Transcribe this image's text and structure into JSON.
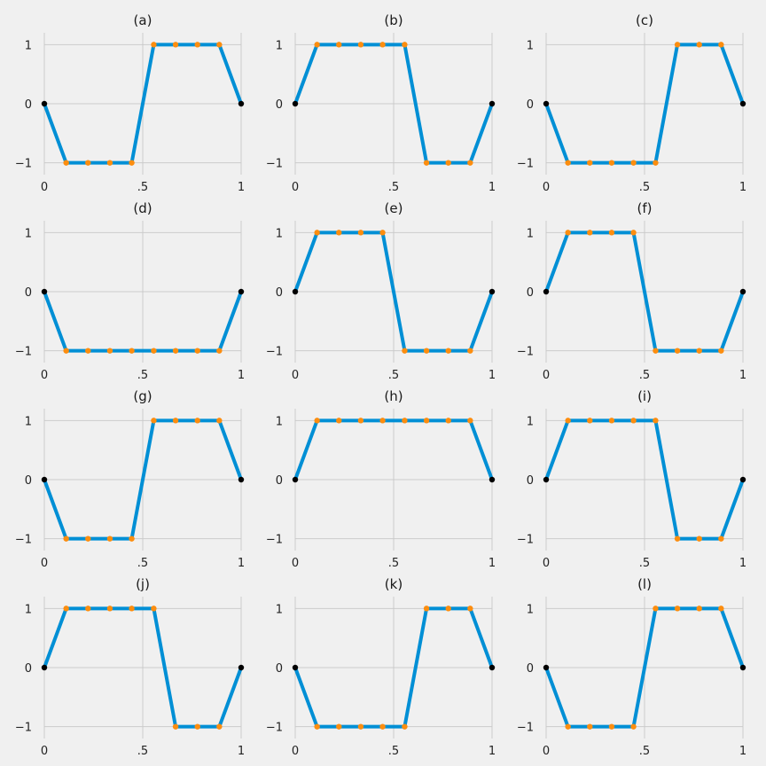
{
  "chart_data": [
    {
      "type": "line",
      "title": "(a)",
      "x": [
        0,
        0.111,
        0.222,
        0.333,
        0.444,
        0.556,
        0.667,
        0.778,
        0.889,
        1
      ],
      "y": [
        0,
        -1,
        -1,
        -1,
        -1,
        1,
        1,
        1,
        1,
        0
      ],
      "ylim": [
        -1.2,
        1.2
      ],
      "xlim": [
        0,
        1
      ],
      "xticks": [
        0,
        0.5,
        1
      ],
      "xtick_labels": [
        "0",
        ".5",
        "1"
      ],
      "yticks": [
        -1,
        0,
        1
      ],
      "ytick_labels": [
        "−1",
        "0",
        "1"
      ],
      "grid": true
    },
    {
      "type": "line",
      "title": "(b)",
      "x": [
        0,
        0.111,
        0.222,
        0.333,
        0.444,
        0.556,
        0.667,
        0.778,
        0.889,
        1
      ],
      "y": [
        0,
        1,
        1,
        1,
        1,
        1,
        -1,
        -1,
        -1,
        0
      ],
      "ylim": [
        -1.2,
        1.2
      ],
      "xlim": [
        0,
        1
      ],
      "xticks": [
        0,
        0.5,
        1
      ],
      "xtick_labels": [
        "0",
        ".5",
        "1"
      ],
      "yticks": [
        -1,
        0,
        1
      ],
      "ytick_labels": [
        "−1",
        "0",
        "1"
      ],
      "grid": true
    },
    {
      "type": "line",
      "title": "(c)",
      "x": [
        0,
        0.111,
        0.222,
        0.333,
        0.444,
        0.556,
        0.667,
        0.778,
        0.889,
        1
      ],
      "y": [
        0,
        -1,
        -1,
        -1,
        -1,
        -1,
        1,
        1,
        1,
        0
      ],
      "ylim": [
        -1.2,
        1.2
      ],
      "xlim": [
        0,
        1
      ],
      "xticks": [
        0,
        0.5,
        1
      ],
      "xtick_labels": [
        "0",
        ".5",
        "1"
      ],
      "yticks": [
        -1,
        0,
        1
      ],
      "ytick_labels": [
        "−1",
        "0",
        "1"
      ],
      "grid": true
    },
    {
      "type": "line",
      "title": "(d)",
      "x": [
        0,
        0.111,
        0.222,
        0.333,
        0.444,
        0.556,
        0.667,
        0.778,
        0.889,
        1
      ],
      "y": [
        0,
        -1,
        -1,
        -1,
        -1,
        -1,
        -1,
        -1,
        -1,
        0
      ],
      "ylim": [
        -1.2,
        1.2
      ],
      "xlim": [
        0,
        1
      ],
      "xticks": [
        0,
        0.5,
        1
      ],
      "xtick_labels": [
        "0",
        ".5",
        "1"
      ],
      "yticks": [
        -1,
        0,
        1
      ],
      "ytick_labels": [
        "−1",
        "0",
        "1"
      ],
      "grid": true
    },
    {
      "type": "line",
      "title": "(e)",
      "x": [
        0,
        0.111,
        0.222,
        0.333,
        0.444,
        0.556,
        0.667,
        0.778,
        0.889,
        1
      ],
      "y": [
        0,
        1,
        1,
        1,
        1,
        -1,
        -1,
        -1,
        -1,
        0
      ],
      "ylim": [
        -1.2,
        1.2
      ],
      "xlim": [
        0,
        1
      ],
      "xticks": [
        0,
        0.5,
        1
      ],
      "xtick_labels": [
        "0",
        ".5",
        "1"
      ],
      "yticks": [
        -1,
        0,
        1
      ],
      "ytick_labels": [
        "−1",
        "0",
        "1"
      ],
      "grid": true
    },
    {
      "type": "line",
      "title": "(f)",
      "x": [
        0,
        0.111,
        0.222,
        0.333,
        0.444,
        0.556,
        0.667,
        0.778,
        0.889,
        1
      ],
      "y": [
        0,
        1,
        1,
        1,
        1,
        -1,
        -1,
        -1,
        -1,
        0
      ],
      "ylim": [
        -1.2,
        1.2
      ],
      "xlim": [
        0,
        1
      ],
      "xticks": [
        0,
        0.5,
        1
      ],
      "xtick_labels": [
        "0",
        ".5",
        "1"
      ],
      "yticks": [
        -1,
        0,
        1
      ],
      "ytick_labels": [
        "−1",
        "0",
        "1"
      ],
      "grid": true
    },
    {
      "type": "line",
      "title": "(g)",
      "x": [
        0,
        0.111,
        0.222,
        0.333,
        0.444,
        0.556,
        0.667,
        0.778,
        0.889,
        1
      ],
      "y": [
        0,
        -1,
        -1,
        -1,
        -1,
        1,
        1,
        1,
        1,
        0
      ],
      "ylim": [
        -1.2,
        1.2
      ],
      "xlim": [
        0,
        1
      ],
      "xticks": [
        0,
        0.5,
        1
      ],
      "xtick_labels": [
        "0",
        ".5",
        "1"
      ],
      "yticks": [
        -1,
        0,
        1
      ],
      "ytick_labels": [
        "−1",
        "0",
        "1"
      ],
      "grid": true
    },
    {
      "type": "line",
      "title": "(h)",
      "x": [
        0,
        0.111,
        0.222,
        0.333,
        0.444,
        0.556,
        0.667,
        0.778,
        0.889,
        1
      ],
      "y": [
        0,
        1,
        1,
        1,
        1,
        1,
        1,
        1,
        1,
        0
      ],
      "ylim": [
        -1.2,
        1.2
      ],
      "xlim": [
        0,
        1
      ],
      "xticks": [
        0,
        0.5,
        1
      ],
      "xtick_labels": [
        "0",
        ".5",
        "1"
      ],
      "yticks": [
        -1,
        0,
        1
      ],
      "ytick_labels": [
        "−1",
        "0",
        "1"
      ],
      "grid": true
    },
    {
      "type": "line",
      "title": "(i)",
      "x": [
        0,
        0.111,
        0.222,
        0.333,
        0.444,
        0.556,
        0.667,
        0.778,
        0.889,
        1
      ],
      "y": [
        0,
        1,
        1,
        1,
        1,
        1,
        -1,
        -1,
        -1,
        0
      ],
      "ylim": [
        -1.2,
        1.2
      ],
      "xlim": [
        0,
        1
      ],
      "xticks": [
        0,
        0.5,
        1
      ],
      "xtick_labels": [
        "0",
        ".5",
        "1"
      ],
      "yticks": [
        -1,
        0,
        1
      ],
      "ytick_labels": [
        "−1",
        "0",
        "1"
      ],
      "grid": true
    },
    {
      "type": "line",
      "title": "(j)",
      "x": [
        0,
        0.111,
        0.222,
        0.333,
        0.444,
        0.556,
        0.667,
        0.778,
        0.889,
        1
      ],
      "y": [
        0,
        1,
        1,
        1,
        1,
        1,
        -1,
        -1,
        -1,
        0
      ],
      "ylim": [
        -1.2,
        1.2
      ],
      "xlim": [
        0,
        1
      ],
      "xticks": [
        0,
        0.5,
        1
      ],
      "xtick_labels": [
        "0",
        ".5",
        "1"
      ],
      "yticks": [
        -1,
        0,
        1
      ],
      "ytick_labels": [
        "−1",
        "0",
        "1"
      ],
      "grid": true
    },
    {
      "type": "line",
      "title": "(k)",
      "x": [
        0,
        0.111,
        0.222,
        0.333,
        0.444,
        0.556,
        0.667,
        0.778,
        0.889,
        1
      ],
      "y": [
        0,
        -1,
        -1,
        -1,
        -1,
        -1,
        1,
        1,
        1,
        0
      ],
      "ylim": [
        -1.2,
        1.2
      ],
      "xlim": [
        0,
        1
      ],
      "xticks": [
        0,
        0.5,
        1
      ],
      "xtick_labels": [
        "0",
        ".5",
        "1"
      ],
      "yticks": [
        -1,
        0,
        1
      ],
      "ytick_labels": [
        "−1",
        "0",
        "1"
      ],
      "grid": true
    },
    {
      "type": "line",
      "title": "(l)",
      "x": [
        0,
        0.111,
        0.222,
        0.333,
        0.444,
        0.556,
        0.667,
        0.778,
        0.889,
        1
      ],
      "y": [
        0,
        -1,
        -1,
        -1,
        -1,
        1,
        1,
        1,
        1,
        0
      ],
      "ylim": [
        -1.2,
        1.2
      ],
      "xlim": [
        0,
        1
      ],
      "xticks": [
        0,
        0.5,
        1
      ],
      "xtick_labels": [
        "0",
        ".5",
        "1"
      ],
      "yticks": [
        -1,
        0,
        1
      ],
      "ytick_labels": [
        "−1",
        "0",
        "1"
      ],
      "grid": true
    }
  ],
  "colors": {
    "background": "#f0f0f0",
    "grid": "#cbcbcb",
    "line": "#008fd5",
    "interior_marker": "#fc8d0f",
    "endpoint_marker": "#000000"
  }
}
